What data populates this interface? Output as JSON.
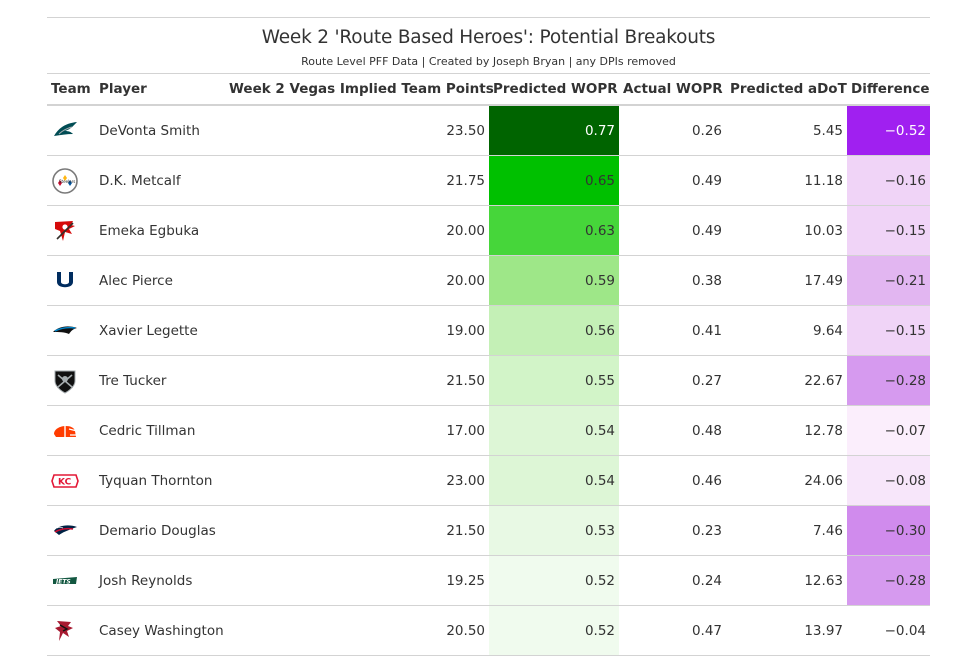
{
  "title": "Week 2 'Route Based Heroes': Potential Breakouts",
  "subtitle": "Route Level PFF Data | Created by Joseph Bryan | any DPIs removed",
  "chart_data": {
    "type": "table",
    "columns": [
      "Team",
      "Player",
      "Week 2 Vegas Implied Team Points",
      "Predicted WOPR",
      "Actual WOPR",
      "Predicted aDoT",
      "Difference"
    ],
    "rows": [
      {
        "team_icon": "eagles-logo-icon",
        "player": "DeVonta Smith",
        "implied": "23.50",
        "pred_wopr": "0.77",
        "act_wopr": "0.26",
        "adot": "5.45",
        "diff": "−0.52"
      },
      {
        "team_icon": "steelers-logo-icon",
        "player": "D.K. Metcalf",
        "implied": "21.75",
        "pred_wopr": "0.65",
        "act_wopr": "0.49",
        "adot": "11.18",
        "diff": "−0.16"
      },
      {
        "team_icon": "buccaneers-logo-icon",
        "player": "Emeka Egbuka",
        "implied": "20.00",
        "pred_wopr": "0.63",
        "act_wopr": "0.49",
        "adot": "10.03",
        "diff": "−0.15"
      },
      {
        "team_icon": "colts-logo-icon",
        "player": "Alec Pierce",
        "implied": "20.00",
        "pred_wopr": "0.59",
        "act_wopr": "0.38",
        "adot": "17.49",
        "diff": "−0.21"
      },
      {
        "team_icon": "panthers-logo-icon",
        "player": "Xavier Legette",
        "implied": "19.00",
        "pred_wopr": "0.56",
        "act_wopr": "0.41",
        "adot": "9.64",
        "diff": "−0.15"
      },
      {
        "team_icon": "raiders-logo-icon",
        "player": "Tre Tucker",
        "implied": "21.50",
        "pred_wopr": "0.55",
        "act_wopr": "0.27",
        "adot": "22.67",
        "diff": "−0.28"
      },
      {
        "team_icon": "browns-logo-icon",
        "player": "Cedric Tillman",
        "implied": "17.00",
        "pred_wopr": "0.54",
        "act_wopr": "0.48",
        "adot": "12.78",
        "diff": "−0.07"
      },
      {
        "team_icon": "chiefs-logo-icon",
        "player": "Tyquan Thornton",
        "implied": "23.00",
        "pred_wopr": "0.54",
        "act_wopr": "0.46",
        "adot": "24.06",
        "diff": "−0.08"
      },
      {
        "team_icon": "patriots-logo-icon",
        "player": "Demario Douglas",
        "implied": "21.50",
        "pred_wopr": "0.53",
        "act_wopr": "0.23",
        "adot": "7.46",
        "diff": "−0.30"
      },
      {
        "team_icon": "jets-logo-icon",
        "player": "Josh Reynolds",
        "implied": "19.25",
        "pred_wopr": "0.52",
        "act_wopr": "0.24",
        "adot": "12.63",
        "diff": "−0.28"
      },
      {
        "team_icon": "falcons-logo-icon",
        "player": "Casey Washington",
        "implied": "20.50",
        "pred_wopr": "0.52",
        "act_wopr": "0.47",
        "adot": "13.97",
        "diff": "−0.04"
      }
    ],
    "wopr_colors": [
      "#006400",
      "#00c000",
      "#46d63a",
      "#9ee788",
      "#c4f0b6",
      "#d2f4c8",
      "#ddf6d6",
      "#ddf6d6",
      "#e8f9e4",
      "#f0fbee",
      "#f0fbee"
    ],
    "diff_colors": [
      "#a020f0",
      "#f0d4f7",
      "#f0d4f7",
      "#e2b6f1",
      "#f0d4f7",
      "#d69aef",
      "#fbeefc",
      "#f7e6fa",
      "#d08bed",
      "#d69aef",
      "#ffffff"
    ],
    "wopr_dark_text": [
      "#ffffff",
      "#333333",
      "#333333",
      "#333333",
      "#333333",
      "#333333",
      "#333333",
      "#333333",
      "#333333",
      "#333333",
      "#333333"
    ],
    "diff_text": [
      "#ffffff",
      "#333333",
      "#333333",
      "#333333",
      "#333333",
      "#333333",
      "#333333",
      "#333333",
      "#333333",
      "#333333",
      "#333333"
    ]
  }
}
